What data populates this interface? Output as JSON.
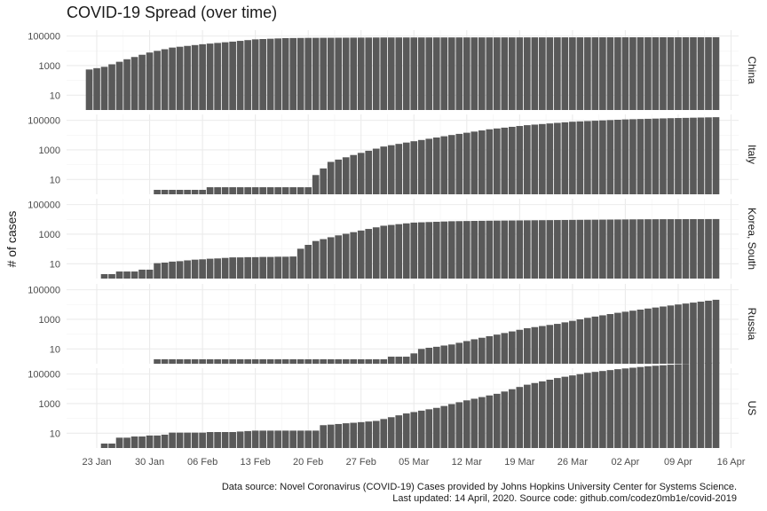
{
  "chart_data": {
    "type": "bar",
    "title": "COVID-19 Spread (over time)",
    "ylabel": "# of cases",
    "xlabel": "",
    "y_scale": "log10",
    "ylim": [
      1,
      250000
    ],
    "xlim": [
      "2020-01-19",
      "2020-04-17"
    ],
    "x_ticks": [
      {
        "date": "2020-01-23",
        "label": "23 Jan"
      },
      {
        "date": "2020-01-30",
        "label": "30 Jan"
      },
      {
        "date": "2020-02-06",
        "label": "06 Feb"
      },
      {
        "date": "2020-02-13",
        "label": "13 Feb"
      },
      {
        "date": "2020-02-20",
        "label": "20 Feb"
      },
      {
        "date": "2020-02-27",
        "label": "27 Feb"
      },
      {
        "date": "2020-03-05",
        "label": "05 Mar"
      },
      {
        "date": "2020-03-12",
        "label": "12 Mar"
      },
      {
        "date": "2020-03-19",
        "label": "19 Mar"
      },
      {
        "date": "2020-03-26",
        "label": "26 Mar"
      },
      {
        "date": "2020-04-02",
        "label": "02 Apr"
      },
      {
        "date": "2020-04-09",
        "label": "09 Apr"
      },
      {
        "date": "2020-04-16",
        "label": "16 Apr"
      }
    ],
    "y_ticks": [
      {
        "value": 10,
        "label": "10"
      },
      {
        "value": 1000,
        "label": "1000"
      },
      {
        "value": 100000,
        "label": "100000"
      }
    ],
    "bar_color": "#595959",
    "grid": true,
    "facets": [
      {
        "name": "China",
        "start": "2020-01-22",
        "end": "2020-04-14",
        "points": [
          [
            "2020-01-22",
            548
          ],
          [
            "2020-01-24",
            830
          ],
          [
            "2020-01-27",
            2700
          ],
          [
            "2020-01-30",
            7700
          ],
          [
            "2020-02-02",
            16600
          ],
          [
            "2020-02-06",
            28000
          ],
          [
            "2020-02-10",
            42000
          ],
          [
            "2020-02-13",
            59800
          ],
          [
            "2020-02-17",
            72400
          ],
          [
            "2020-02-20",
            75100
          ],
          [
            "2020-03-01",
            80000
          ],
          [
            "2020-04-14",
            83300
          ]
        ]
      },
      {
        "name": "Italy",
        "start": "2020-01-31",
        "end": "2020-04-14",
        "points": [
          [
            "2020-01-31",
            2
          ],
          [
            "2020-02-06",
            2
          ],
          [
            "2020-02-07",
            3
          ],
          [
            "2020-02-20",
            3
          ],
          [
            "2020-02-21",
            20
          ],
          [
            "2020-02-23",
            155
          ],
          [
            "2020-02-26",
            453
          ],
          [
            "2020-03-01",
            1694
          ],
          [
            "2020-03-05",
            3858
          ],
          [
            "2020-03-10",
            10149
          ],
          [
            "2020-03-15",
            24747
          ],
          [
            "2020-03-20",
            47021
          ],
          [
            "2020-03-26",
            80589
          ],
          [
            "2020-04-02",
            115242
          ],
          [
            "2020-04-08",
            139422
          ],
          [
            "2020-04-14",
            162488
          ]
        ]
      },
      {
        "name": "Korea, South",
        "start": "2020-01-22",
        "end": "2020-04-14",
        "points": [
          [
            "2020-01-22",
            1
          ],
          [
            "2020-01-24",
            2
          ],
          [
            "2020-01-26",
            3
          ],
          [
            "2020-01-30",
            4
          ],
          [
            "2020-01-31",
            11
          ],
          [
            "2020-02-05",
            19
          ],
          [
            "2020-02-10",
            27
          ],
          [
            "2020-02-18",
            31
          ],
          [
            "2020-02-19",
            104
          ],
          [
            "2020-02-21",
            346
          ],
          [
            "2020-02-24",
            833
          ],
          [
            "2020-02-27",
            1766
          ],
          [
            "2020-03-01",
            3736
          ],
          [
            "2020-03-05",
            6088
          ],
          [
            "2020-03-10",
            7513
          ],
          [
            "2020-03-15",
            8162
          ],
          [
            "2020-03-25",
            9137
          ],
          [
            "2020-04-05",
            10237
          ],
          [
            "2020-04-14",
            10564
          ]
        ]
      },
      {
        "name": "Russia",
        "start": "2020-01-31",
        "end": "2020-04-14",
        "points": [
          [
            "2020-01-31",
            2
          ],
          [
            "2020-03-01",
            2
          ],
          [
            "2020-03-02",
            3
          ],
          [
            "2020-03-04",
            3
          ],
          [
            "2020-03-06",
            10
          ],
          [
            "2020-03-10",
            20
          ],
          [
            "2020-03-13",
            45
          ],
          [
            "2020-03-16",
            93
          ],
          [
            "2020-03-20",
            253
          ],
          [
            "2020-03-24",
            495
          ],
          [
            "2020-03-28",
            1264
          ],
          [
            "2020-04-01",
            2777
          ],
          [
            "2020-04-05",
            5389
          ],
          [
            "2020-04-09",
            10131
          ],
          [
            "2020-04-14",
            21102
          ]
        ]
      },
      {
        "name": "US",
        "start": "2020-01-22",
        "end": "2020-04-14",
        "points": [
          [
            "2020-01-22",
            1
          ],
          [
            "2020-01-25",
            2
          ],
          [
            "2020-01-26",
            5
          ],
          [
            "2020-02-01",
            8
          ],
          [
            "2020-02-02",
            11
          ],
          [
            "2020-02-10",
            12
          ],
          [
            "2020-02-13",
            15
          ],
          [
            "2020-02-21",
            15
          ],
          [
            "2020-02-22",
            35
          ],
          [
            "2020-02-29",
            68
          ],
          [
            "2020-03-04",
            217
          ],
          [
            "2020-03-08",
            517
          ],
          [
            "2020-03-12",
            1663
          ],
          [
            "2020-03-16",
            4632
          ],
          [
            "2020-03-20",
            19100
          ],
          [
            "2020-03-24",
            53740
          ],
          [
            "2020-03-28",
            121478
          ],
          [
            "2020-04-01",
            213372
          ],
          [
            "2020-04-05",
            337072
          ],
          [
            "2020-04-09",
            461437
          ],
          [
            "2020-04-14",
            607670
          ]
        ]
      }
    ]
  },
  "caption": {
    "line1": "Data source: Novel Coronavirus (COVID-19) Cases provided by Johns Hopkins University Center for Systems Science.",
    "line2": "Last updated: 14 April, 2020. Source code: github.com/codez0mb1e/covid-2019"
  }
}
